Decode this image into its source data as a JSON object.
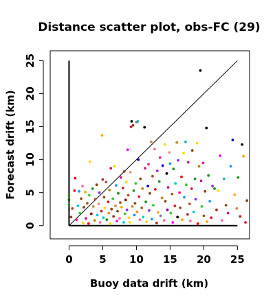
{
  "chart_data": {
    "type": "scatter",
    "title": "Distance scatter plot, obs-FC (29)",
    "xlabel": "Buoy data drift (km)",
    "ylabel": "Forecast drift (km)",
    "xlim": [
      -2.8,
      26.8
    ],
    "ylim": [
      -2.0,
      26.5
    ],
    "xticks": [
      0,
      5,
      10,
      15,
      20,
      25
    ],
    "yticks": [
      0,
      5,
      10,
      15,
      20,
      25
    ],
    "grid": false,
    "reference_lines": [
      {
        "name": "diagonal",
        "from": [
          0,
          0
        ],
        "to": [
          25,
          25
        ],
        "color": "#000000"
      },
      {
        "name": "vertical",
        "from": [
          0,
          0
        ],
        "to": [
          0,
          25
        ],
        "color": "#000000"
      },
      {
        "name": "horizontal",
        "from": [
          0,
          0
        ],
        "to": [
          25,
          0
        ],
        "color": "#000000"
      }
    ],
    "points": [
      {
        "x": 0.0,
        "y": 4.6,
        "color": "#228B22"
      },
      {
        "x": 0.0,
        "y": 3.9,
        "color": "#006400"
      },
      {
        "x": 0.0,
        "y": 3.2,
        "color": "#228B22"
      },
      {
        "x": 0.3,
        "y": 1.3,
        "color": "#8B4513"
      },
      {
        "x": 0.5,
        "y": 2.6,
        "color": "#A0522D"
      },
      {
        "x": 0.8,
        "y": 5.3,
        "color": "#DC143C"
      },
      {
        "x": 0.9,
        "y": 7.2,
        "color": "#E00000"
      },
      {
        "x": 1.1,
        "y": 0.9,
        "color": "#FF1493"
      },
      {
        "x": 1.3,
        "y": 3.0,
        "color": "#00CED1"
      },
      {
        "x": 1.5,
        "y": 5.2,
        "color": "#1E90FF"
      },
      {
        "x": 1.6,
        "y": 1.9,
        "color": "#32CD32"
      },
      {
        "x": 1.8,
        "y": 4.1,
        "color": "#8B4513"
      },
      {
        "x": 2.0,
        "y": 6.0,
        "color": "#FF69B4"
      },
      {
        "x": 2.1,
        "y": 0.4,
        "color": "#FFD700"
      },
      {
        "x": 2.2,
        "y": 2.8,
        "color": "#8B4513"
      },
      {
        "x": 2.4,
        "y": 5.1,
        "color": "#FFA500"
      },
      {
        "x": 2.5,
        "y": 1.1,
        "color": "#C71585"
      },
      {
        "x": 2.7,
        "y": 3.4,
        "color": "#A0522D"
      },
      {
        "x": 2.9,
        "y": 0.3,
        "color": "#FF0000"
      },
      {
        "x": 3.0,
        "y": 4.6,
        "color": "#32CD32"
      },
      {
        "x": 3.1,
        "y": 9.7,
        "color": "#FFD700"
      },
      {
        "x": 3.3,
        "y": 1.8,
        "color": "#8B0000"
      },
      {
        "x": 3.5,
        "y": 5.6,
        "color": "#228B22"
      },
      {
        "x": 3.6,
        "y": 2.9,
        "color": "#CD853F"
      },
      {
        "x": 3.8,
        "y": 0.8,
        "color": "#B8860B"
      },
      {
        "x": 3.9,
        "y": 4.0,
        "color": "#A0522D"
      },
      {
        "x": 4.1,
        "y": 6.2,
        "color": "#8B4513"
      },
      {
        "x": 4.2,
        "y": 1.6,
        "color": "#00BFFF"
      },
      {
        "x": 4.4,
        "y": 3.3,
        "color": "#E9967A"
      },
      {
        "x": 4.5,
        "y": 5.0,
        "color": "#8A2BE2"
      },
      {
        "x": 4.6,
        "y": 0.5,
        "color": "#FF69B4"
      },
      {
        "x": 4.8,
        "y": 2.2,
        "color": "#A52A2A"
      },
      {
        "x": 4.9,
        "y": 13.7,
        "color": "#FFA500"
      },
      {
        "x": 5.0,
        "y": 7.0,
        "color": "#B22222"
      },
      {
        "x": 5.1,
        "y": 1.2,
        "color": "#00CED1"
      },
      {
        "x": 5.2,
        "y": 4.3,
        "color": "#8B4513"
      },
      {
        "x": 5.3,
        "y": 2.7,
        "color": "#FFD700"
      },
      {
        "x": 5.5,
        "y": 6.6,
        "color": "#A0522D"
      },
      {
        "x": 5.6,
        "y": 0.9,
        "color": "#228B22"
      },
      {
        "x": 5.8,
        "y": 3.6,
        "color": "#DC143C"
      },
      {
        "x": 5.9,
        "y": 1.9,
        "color": "#FF8C00"
      },
      {
        "x": 6.0,
        "y": 5.4,
        "color": "#B8860B"
      },
      {
        "x": 6.1,
        "y": 0.3,
        "color": "#FFD700"
      },
      {
        "x": 6.2,
        "y": 8.7,
        "color": "#DC143C"
      },
      {
        "x": 6.3,
        "y": 2.5,
        "color": "#8B4513"
      },
      {
        "x": 6.5,
        "y": 4.1,
        "color": "#32CD32"
      },
      {
        "x": 6.6,
        "y": 1.4,
        "color": "#A52A2A"
      },
      {
        "x": 6.7,
        "y": 9.0,
        "color": "#FFD700"
      },
      {
        "x": 6.9,
        "y": 3.0,
        "color": "#CD853F"
      },
      {
        "x": 7.0,
        "y": 6.1,
        "color": "#1E90FF"
      },
      {
        "x": 7.1,
        "y": 0.7,
        "color": "#FF00FF"
      },
      {
        "x": 7.2,
        "y": 2.2,
        "color": "#8B4513"
      },
      {
        "x": 7.3,
        "y": 4.9,
        "color": "#228B22"
      },
      {
        "x": 7.5,
        "y": 1.1,
        "color": "#FF69B4"
      },
      {
        "x": 7.6,
        "y": 3.5,
        "color": "#A0522D"
      },
      {
        "x": 7.7,
        "y": 7.3,
        "color": "#C71585"
      },
      {
        "x": 7.8,
        "y": 2.8,
        "color": "#FFA500"
      },
      {
        "x": 8.0,
        "y": 5.7,
        "color": "#B22222"
      },
      {
        "x": 8.1,
        "y": 0.5,
        "color": "#00CED1"
      },
      {
        "x": 8.2,
        "y": 8.2,
        "color": "#8B4513"
      },
      {
        "x": 8.3,
        "y": 1.8,
        "color": "#32CD32"
      },
      {
        "x": 8.4,
        "y": 3.9,
        "color": "#8B0000"
      },
      {
        "x": 8.5,
        "y": 6.6,
        "color": "#FFD700"
      },
      {
        "x": 8.6,
        "y": 2.4,
        "color": "#8A2BE2"
      },
      {
        "x": 8.7,
        "y": 11.5,
        "color": "#FF00FF"
      },
      {
        "x": 8.8,
        "y": 4.6,
        "color": "#A0522D"
      },
      {
        "x": 8.9,
        "y": 1.2,
        "color": "#FFD700"
      },
      {
        "x": 9.0,
        "y": 0.5,
        "color": "#FFD700"
      },
      {
        "x": 9.1,
        "y": 8.1,
        "color": "#E9967A"
      },
      {
        "x": 9.2,
        "y": 15.0,
        "color": "#B22222"
      },
      {
        "x": 9.3,
        "y": 15.8,
        "color": "#000000"
      },
      {
        "x": 9.4,
        "y": 2.9,
        "color": "#CD853F"
      },
      {
        "x": 9.5,
        "y": 15.2,
        "color": "#A52A2A"
      },
      {
        "x": 9.6,
        "y": 5.3,
        "color": "#228B22"
      },
      {
        "x": 9.7,
        "y": 1.6,
        "color": "#1E90FF"
      },
      {
        "x": 9.8,
        "y": 3.4,
        "color": "#8B4513"
      },
      {
        "x": 9.9,
        "y": 6.4,
        "color": "#32CD32"
      },
      {
        "x": 10.0,
        "y": 15.7,
        "color": "#708090"
      },
      {
        "x": 10.1,
        "y": 2.1,
        "color": "#FF8C00"
      },
      {
        "x": 10.2,
        "y": 15.8,
        "color": "#20B2AA"
      },
      {
        "x": 10.3,
        "y": 10.0,
        "color": "#0000CD"
      },
      {
        "x": 10.4,
        "y": 4.4,
        "color": "#DC143C"
      },
      {
        "x": 10.5,
        "y": 0.9,
        "color": "#FF69B4"
      },
      {
        "x": 10.6,
        "y": 7.1,
        "color": "#8B4513"
      },
      {
        "x": 10.8,
        "y": 2.7,
        "color": "#A0522D"
      },
      {
        "x": 10.9,
        "y": 5.6,
        "color": "#B8860B"
      },
      {
        "x": 11.0,
        "y": 1.3,
        "color": "#00CED1"
      },
      {
        "x": 11.2,
        "y": 14.9,
        "color": "#000000"
      },
      {
        "x": 11.3,
        "y": 8.7,
        "color": "#C71585"
      },
      {
        "x": 11.4,
        "y": 3.6,
        "color": "#228B22"
      },
      {
        "x": 11.5,
        "y": 0.6,
        "color": "#FFD700"
      },
      {
        "x": 11.7,
        "y": 6.0,
        "color": "#0000CD"
      },
      {
        "x": 11.8,
        "y": 9.3,
        "color": "#FF1493"
      },
      {
        "x": 11.9,
        "y": 2.3,
        "color": "#8A2BE2"
      },
      {
        "x": 12.0,
        "y": 4.9,
        "color": "#8B4513"
      },
      {
        "x": 12.2,
        "y": 12.7,
        "color": "#CD853F"
      },
      {
        "x": 12.3,
        "y": 1.0,
        "color": "#1E90FF"
      },
      {
        "x": 12.4,
        "y": 7.5,
        "color": "#A0522D"
      },
      {
        "x": 12.5,
        "y": 3.1,
        "color": "#32CD32"
      },
      {
        "x": 12.7,
        "y": 11.6,
        "color": "#FF69B4"
      },
      {
        "x": 12.8,
        "y": 5.5,
        "color": "#DC143C"
      },
      {
        "x": 13.0,
        "y": 0.4,
        "color": "#B22222"
      },
      {
        "x": 13.1,
        "y": 8.3,
        "color": "#8A2BE2"
      },
      {
        "x": 13.2,
        "y": 2.0,
        "color": "#FFA500"
      },
      {
        "x": 13.4,
        "y": 6.7,
        "color": "#228B22"
      },
      {
        "x": 13.5,
        "y": 10.3,
        "color": "#FF1493"
      },
      {
        "x": 13.6,
        "y": 1.5,
        "color": "#708090"
      },
      {
        "x": 13.8,
        "y": 4.2,
        "color": "#B8860B"
      },
      {
        "x": 13.9,
        "y": 9.1,
        "color": "#0000CD"
      },
      {
        "x": 14.1,
        "y": 0.8,
        "color": "#FF69B4"
      },
      {
        "x": 14.2,
        "y": 12.3,
        "color": "#FFD700"
      },
      {
        "x": 14.3,
        "y": 3.7,
        "color": "#8B4513"
      },
      {
        "x": 14.5,
        "y": 7.9,
        "color": "#000000"
      },
      {
        "x": 14.6,
        "y": 2.4,
        "color": "#8B008B"
      },
      {
        "x": 14.7,
        "y": 5.8,
        "color": "#C71585"
      },
      {
        "x": 14.9,
        "y": 11.1,
        "color": "#E9967A"
      },
      {
        "x": 15.0,
        "y": 9.4,
        "color": "#1E90FF"
      },
      {
        "x": 15.1,
        "y": 1.9,
        "color": "#32CD32"
      },
      {
        "x": 15.3,
        "y": 4.8,
        "color": "#A0522D"
      },
      {
        "x": 15.4,
        "y": 0.5,
        "color": "#FF00FF"
      },
      {
        "x": 15.5,
        "y": 8.6,
        "color": "#228B22"
      },
      {
        "x": 15.7,
        "y": 3.0,
        "color": "#DC143C"
      },
      {
        "x": 15.8,
        "y": 6.4,
        "color": "#00CED1"
      },
      {
        "x": 16.0,
        "y": 12.6,
        "color": "#B8860B"
      },
      {
        "x": 16.1,
        "y": 1.3,
        "color": "#000000"
      },
      {
        "x": 16.2,
        "y": 9.9,
        "color": "#8A2BE2"
      },
      {
        "x": 16.4,
        "y": 5.0,
        "color": "#FF1493"
      },
      {
        "x": 16.5,
        "y": 2.7,
        "color": "#8B4513"
      },
      {
        "x": 16.7,
        "y": 7.4,
        "color": "#FF0000"
      },
      {
        "x": 16.8,
        "y": 0.9,
        "color": "#FFA500"
      },
      {
        "x": 17.0,
        "y": 11.0,
        "color": "#FFD700"
      },
      {
        "x": 17.1,
        "y": 4.3,
        "color": "#1E90FF"
      },
      {
        "x": 17.3,
        "y": 12.7,
        "color": "#20B2AA"
      },
      {
        "x": 17.4,
        "y": 6.2,
        "color": "#32CD32"
      },
      {
        "x": 17.6,
        "y": 1.7,
        "color": "#B22222"
      },
      {
        "x": 17.7,
        "y": 9.6,
        "color": "#C71585"
      },
      {
        "x": 17.9,
        "y": 3.3,
        "color": "#A0522D"
      },
      {
        "x": 18.0,
        "y": 0.7,
        "color": "#FF69B4"
      },
      {
        "x": 18.2,
        "y": 5.6,
        "color": "#DC143C"
      },
      {
        "x": 18.3,
        "y": 11.4,
        "color": "#8B4513"
      },
      {
        "x": 18.5,
        "y": 2.1,
        "color": "#00CED1"
      },
      {
        "x": 18.7,
        "y": 7.1,
        "color": "#228B22"
      },
      {
        "x": 18.8,
        "y": 4.0,
        "color": "#8A2BE2"
      },
      {
        "x": 19.0,
        "y": 12.5,
        "color": "#FFD700"
      },
      {
        "x": 19.1,
        "y": 0.3,
        "color": "#FF0000"
      },
      {
        "x": 19.3,
        "y": 9.0,
        "color": "#B8860B"
      },
      {
        "x": 19.5,
        "y": 23.5,
        "color": "#000000"
      },
      {
        "x": 19.6,
        "y": 6.8,
        "color": "#C71585"
      },
      {
        "x": 19.7,
        "y": 2.9,
        "color": "#32CD32"
      },
      {
        "x": 19.9,
        "y": 9.5,
        "color": "#FF1493"
      },
      {
        "x": 20.0,
        "y": 1.5,
        "color": "#A0522D"
      },
      {
        "x": 20.2,
        "y": 5.2,
        "color": "#8B4513"
      },
      {
        "x": 20.4,
        "y": 14.8,
        "color": "#000000"
      },
      {
        "x": 20.5,
        "y": 0.6,
        "color": "#FFA500"
      },
      {
        "x": 20.7,
        "y": 7.6,
        "color": "#228B22"
      },
      {
        "x": 20.9,
        "y": 3.7,
        "color": "#1E90FF"
      },
      {
        "x": 21.1,
        "y": 1.2,
        "color": "#DC143C"
      },
      {
        "x": 21.3,
        "y": 6.0,
        "color": "#8A2BE2"
      },
      {
        "x": 21.6,
        "y": 5.6,
        "color": "#228B22"
      },
      {
        "x": 21.9,
        "y": 2.4,
        "color": "#B22222"
      },
      {
        "x": 22.1,
        "y": 5.3,
        "color": "#FFD700"
      },
      {
        "x": 22.4,
        "y": 10.6,
        "color": "#FF00FF"
      },
      {
        "x": 22.7,
        "y": 0.8,
        "color": "#FF69B4"
      },
      {
        "x": 23.0,
        "y": 7.1,
        "color": "#20B2AA"
      },
      {
        "x": 23.3,
        "y": 3.1,
        "color": "#8B4513"
      },
      {
        "x": 23.6,
        "y": 1.9,
        "color": "#C71585"
      },
      {
        "x": 24.0,
        "y": 9.0,
        "color": "#1E90FF"
      },
      {
        "x": 24.3,
        "y": 13.0,
        "color": "#0000CD"
      },
      {
        "x": 24.6,
        "y": 4.7,
        "color": "#FFA500"
      },
      {
        "x": 24.9,
        "y": 2.6,
        "color": "#CD853F"
      },
      {
        "x": 25.1,
        "y": 7.3,
        "color": "#228B22"
      },
      {
        "x": 25.4,
        "y": 1.4,
        "color": "#B22222"
      },
      {
        "x": 25.7,
        "y": 12.3,
        "color": "#000000"
      },
      {
        "x": 25.9,
        "y": 10.5,
        "color": "#FFA500"
      },
      {
        "x": 26.2,
        "y": 0.5,
        "color": "#DC143C"
      },
      {
        "x": 26.4,
        "y": 3.8,
        "color": "#8B4513"
      }
    ]
  }
}
